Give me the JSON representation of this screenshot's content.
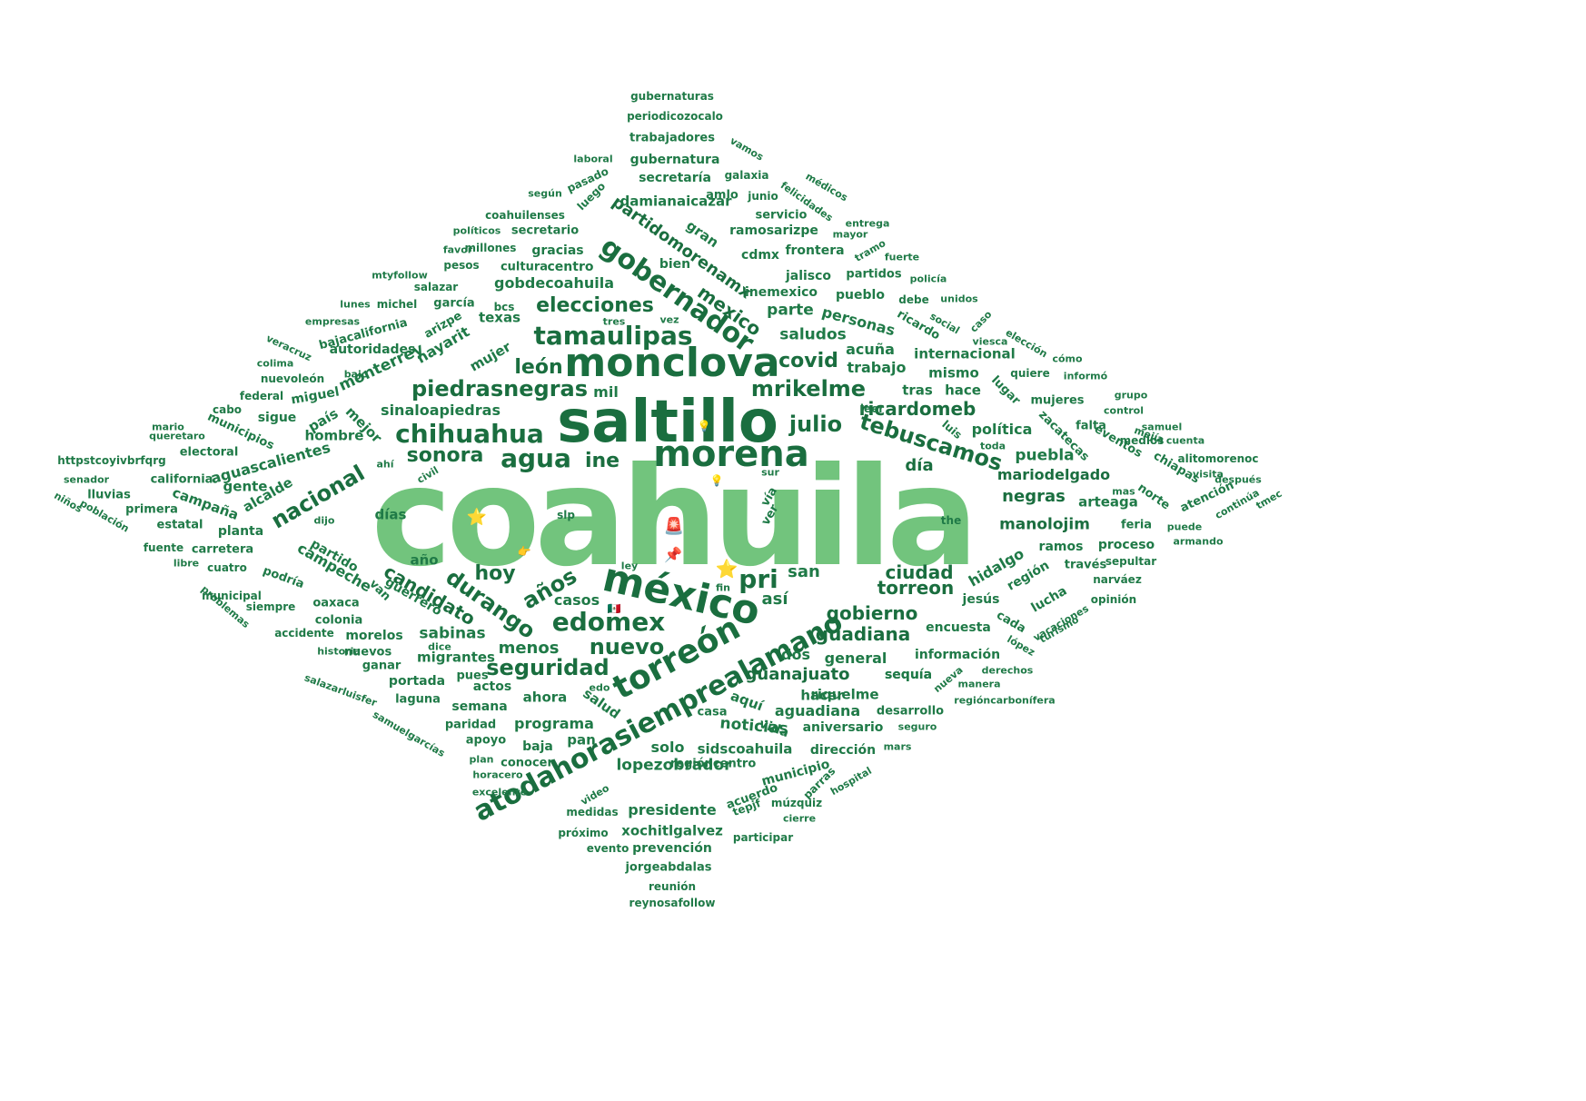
{
  "words": [
    "coahuila",
    "saltillo",
    "monclova",
    "morena",
    "méxico",
    "torreón",
    "atodahorasiemprealamano",
    "tamaulipas",
    "gobernador",
    "chihuahua",
    "agua",
    "piedrasnegras",
    "edomex",
    "mrikelme",
    "tebuscamos",
    "elecciones",
    "partidomorenamx",
    "nacional",
    "durango",
    "covid",
    "julio",
    "león",
    "sonora",
    "ine",
    "pri",
    "años",
    "nuevo",
    "seguridad",
    "candidato",
    "hoy",
    "ciudad",
    "torreon",
    "ricardomeb",
    "mexico",
    "gobierno",
    "guadiana",
    "guanajuato",
    "manolojim",
    "negras",
    "mariodelgado",
    "día",
    "san",
    "así",
    "casos",
    "menos",
    "sabinas",
    "puebla",
    "hidalgo",
    "campeche",
    "alcalde",
    "aguascalientes",
    "sinaloapiedras",
    "mil",
    "saludos",
    "parte",
    "personas",
    "trabajo",
    "acuña",
    "internacional",
    "mismo",
    "tras",
    "hace",
    "noticias",
    "lopezobrador",
    "presidente",
    "programa",
    "solo",
    "sidscoahuila",
    "aguadiana",
    "aniversario",
    "xochitlgalvez",
    "prevención",
    "jorgeabdalas",
    "reunión",
    "reynosafollow",
    "gubernaturas",
    "periodicozocalo",
    "trabajadores",
    "gubernatura",
    "secretaría",
    "damianaicazar",
    "ramosarizpe",
    "frontera",
    "cdmx",
    "bien",
    "gran",
    "jalisco",
    "inemexico",
    "pueblo",
    "partidos",
    "gobdecoahuila",
    "gracias",
    "centro",
    "cultura",
    "coahuilenses",
    "secretario",
    "servicio",
    "amlo",
    "junio",
    "galaxia",
    "millones",
    "salazar",
    "garcía",
    "texas",
    "bcs",
    "mujer",
    "nayarit",
    "arizpe",
    "monterrey",
    "autoridades",
    "bajacalifornia",
    "miguel",
    "país",
    "hombre",
    "sigue",
    "municipios",
    "mejor",
    "electoral",
    "california",
    "gente",
    "campaña",
    "primera",
    "estatal",
    "planta",
    "carretera",
    "partido",
    "guerrero",
    "oaxaca",
    "colonia",
    "morelos",
    "migrantes",
    "actos",
    "pues",
    "semana",
    "ahora",
    "salud",
    "aquí",
    "hacer",
    "riquelme",
    "general",
    "sequía",
    "encuesta",
    "información",
    "dos",
    "región",
    "lucha",
    "jesús",
    "cada",
    "ramos",
    "proceso",
    "través",
    "sepultar",
    "narváez",
    "opinión",
    "feria",
    "arteaga",
    "norte",
    "atención",
    "chiapas",
    "eventos",
    "zacatecas",
    "falta",
    "lugar",
    "quiere",
    "mujeres",
    "ricardo",
    "social",
    "caso",
    "elección",
    "viesca",
    "cómo",
    "informó",
    "grupo",
    "control",
    "samuel",
    "cuenta",
    "alitomorenoc",
    "visita",
    "después",
    "continúa",
    "tmec",
    "mas",
    "puede",
    "armando",
    "política",
    "luis",
    "toda",
    "leer",
    "medios",
    "mejía",
    "municipio",
    "acuerdo",
    "múzquiz",
    "parras",
    "hospital",
    "cierre",
    "tepjf",
    "participar",
    "evento",
    "próximo",
    "medidas",
    "video",
    "excelente",
    "horacero",
    "plan",
    "conocer",
    "apoyo",
    "paridad",
    "baja",
    "pan",
    "vida",
    "casa",
    "edo",
    "portada",
    "laguna",
    "ganar",
    "nuevos",
    "historia",
    "accidente",
    "salazarluisfer",
    "samuelgarcías",
    "municipal",
    "siempre",
    "problemas",
    "libre",
    "cuatro",
    "fuente",
    "población",
    "niños",
    "lluvias",
    "senador",
    "httpstcoyivbrfqrg",
    "mario",
    "queretaro",
    "cabo",
    "federal",
    "nuevoleón",
    "bajo",
    "veracruz",
    "colima",
    "empresas",
    "lunes",
    "michel",
    "mtyfollow",
    "pesos",
    "favor",
    "políticos",
    "según",
    "pasado",
    "luego",
    "laboral",
    "vamos",
    "médicos",
    "felicidades",
    "entrega",
    "mayor",
    "tramo",
    "fuerte",
    "policía",
    "debe",
    "unidos",
    "dirección",
    "mars",
    "seguro",
    "desarrollo",
    "manera",
    "derechos",
    "regióncarbonífera",
    "nueva",
    "lópez",
    "vacaciones",
    "turismo",
    "regióncentro",
    "slp",
    "the",
    "días",
    "ley",
    "fin",
    "van",
    "podría",
    "dijo",
    "ahí",
    "civil",
    "sur",
    "vía",
    "ver",
    "tres",
    "vez",
    "año",
    "dice",
    "sequía"
  ],
  "emoji": [
    "⭐",
    "⭐",
    "🚨",
    "📌",
    "👉",
    "💡",
    "💡",
    "🇲🇽"
  ],
  "colors": {
    "light_green": "#72c47d",
    "dark_green": "#1f7a47",
    "background": "#ffffff"
  }
}
